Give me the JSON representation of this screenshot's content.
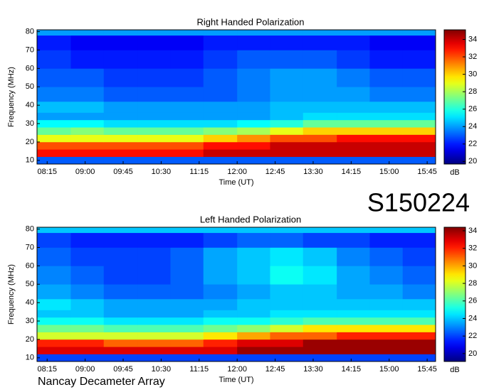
{
  "chart_data": [
    {
      "type": "heatmap",
      "title": "Right Handed Polarization",
      "xlabel": "Time (UT)",
      "ylabel": "Frequency (MHz)",
      "colorbar_label": "dB",
      "colormap": "jet",
      "xlim": [
        483,
        955
      ],
      "ylim": [
        8,
        81
      ],
      "clim": [
        19.7,
        35.1
      ],
      "xticks": [
        {
          "value": 495,
          "label": "08:15"
        },
        {
          "value": 540,
          "label": "09:00"
        },
        {
          "value": 585,
          "label": "09:45"
        },
        {
          "value": 630,
          "label": "10:30"
        },
        {
          "value": 675,
          "label": "11:15"
        },
        {
          "value": 720,
          "label": "12:00"
        },
        {
          "value": 765,
          "label": "12:45"
        },
        {
          "value": 810,
          "label": "13:30"
        },
        {
          "value": 855,
          "label": "14:15"
        },
        {
          "value": 900,
          "label": "15:00"
        },
        {
          "value": 945,
          "label": "15:45"
        }
      ],
      "yticks": [
        10,
        20,
        30,
        40,
        50,
        60,
        70,
        80
      ],
      "cticks": [
        20,
        22,
        24,
        26,
        28,
        30,
        32,
        34
      ],
      "x_edges": [
        483,
        523,
        562,
        602,
        641,
        680,
        720,
        759,
        798,
        838,
        877,
        916,
        955
      ],
      "y_edges": [
        8,
        12,
        16,
        20,
        24,
        28,
        32,
        36,
        42,
        50,
        60,
        70,
        78,
        81
      ],
      "z": [
        [
          23,
          23,
          23,
          23,
          23,
          23,
          23,
          23,
          23,
          23,
          23,
          23
        ],
        [
          33,
          33,
          33,
          33,
          33,
          34,
          34,
          34,
          34,
          34,
          34,
          34
        ],
        [
          32,
          32,
          32,
          32,
          32,
          33,
          33,
          34,
          34,
          34,
          34,
          34
        ],
        [
          29,
          29,
          29,
          29,
          29,
          30,
          31,
          32,
          32,
          33,
          33,
          33
        ],
        [
          27,
          27.5,
          27,
          27,
          27,
          27.5,
          28,
          29,
          30,
          30,
          30,
          30
        ],
        [
          25.5,
          25.5,
          25,
          25,
          25,
          25,
          25.5,
          26,
          27,
          27,
          27,
          27
        ],
        [
          24,
          24,
          24,
          24,
          24,
          24,
          24,
          24.5,
          25,
          25,
          25,
          25
        ],
        [
          24.5,
          24.5,
          24,
          24,
          24,
          24,
          24,
          24.5,
          24.5,
          24.5,
          24.5,
          24.5
        ],
        [
          23.5,
          23.5,
          23,
          23,
          23,
          23,
          23.5,
          24,
          24,
          24,
          23.5,
          23.5
        ],
        [
          23,
          23,
          22.5,
          22.5,
          22.5,
          23,
          23.5,
          24,
          24,
          23.5,
          23,
          23
        ],
        [
          22.5,
          22,
          22,
          22,
          22,
          22.5,
          23,
          23,
          23,
          22.5,
          22,
          22
        ],
        [
          22,
          21.5,
          21.5,
          21.5,
          21.5,
          22,
          22,
          22,
          22,
          22,
          21.5,
          21.5
        ],
        [
          24,
          24,
          24,
          24,
          24,
          24,
          24,
          24,
          24,
          24,
          24,
          24
        ]
      ]
    },
    {
      "type": "heatmap",
      "title": "Left Handed Polarization",
      "xlabel": "Time (UT)",
      "ylabel": "Frequency (MHz)",
      "colorbar_label": "dB",
      "colormap": "jet",
      "xlim": [
        483,
        955
      ],
      "ylim": [
        8,
        81
      ],
      "clim": [
        19.1,
        34.4
      ],
      "xticks": [
        {
          "value": 495,
          "label": "08:15"
        },
        {
          "value": 540,
          "label": "09:00"
        },
        {
          "value": 585,
          "label": "09:45"
        },
        {
          "value": 630,
          "label": "10:30"
        },
        {
          "value": 675,
          "label": "11:15"
        },
        {
          "value": 720,
          "label": "12:00"
        },
        {
          "value": 765,
          "label": "12:45"
        },
        {
          "value": 810,
          "label": "13:30"
        },
        {
          "value": 855,
          "label": "14:15"
        },
        {
          "value": 900,
          "label": "15:00"
        },
        {
          "value": 945,
          "label": "15:45"
        }
      ],
      "yticks": [
        10,
        20,
        30,
        40,
        50,
        60,
        70,
        80
      ],
      "cticks": [
        20,
        22,
        24,
        26,
        28,
        30,
        32,
        34
      ],
      "x_edges": [
        483,
        523,
        562,
        602,
        641,
        680,
        720,
        759,
        798,
        838,
        877,
        916,
        955
      ],
      "y_edges": [
        8,
        12,
        16,
        20,
        24,
        28,
        32,
        36,
        42,
        50,
        60,
        70,
        78,
        81
      ],
      "z": [
        [
          22,
          22,
          22,
          22,
          22,
          22,
          22,
          22,
          22,
          22,
          22,
          22
        ],
        [
          33,
          33,
          33,
          33,
          33,
          33,
          34,
          34,
          34,
          34,
          34,
          34
        ],
        [
          32,
          32,
          31,
          31,
          31,
          32,
          33,
          33,
          34,
          34,
          34,
          34
        ],
        [
          28,
          28,
          28,
          28,
          28,
          29,
          30,
          31,
          31,
          32,
          32,
          32
        ],
        [
          26.5,
          26.5,
          26,
          26,
          26,
          26.5,
          27,
          28,
          29,
          29,
          29,
          29
        ],
        [
          25,
          25,
          24.5,
          24.5,
          24.5,
          25,
          25,
          25.5,
          26,
          26,
          26,
          26
        ],
        [
          24,
          24,
          23.5,
          23.5,
          23.5,
          24,
          24,
          24.5,
          24.5,
          24.5,
          24.5,
          24.5
        ],
        [
          24.5,
          24,
          23.5,
          23.5,
          23.5,
          23.5,
          24,
          24,
          24,
          24,
          24,
          24
        ],
        [
          23.5,
          23,
          22.5,
          22.5,
          22.5,
          23,
          23.5,
          24,
          24,
          23.5,
          23.5,
          23
        ],
        [
          23,
          22.5,
          22,
          22,
          22.5,
          23.5,
          24,
          25,
          24.5,
          23.5,
          23,
          22.5
        ],
        [
          22.5,
          22,
          22,
          22,
          22.5,
          23.5,
          24,
          24.5,
          24,
          23,
          22.5,
          22
        ],
        [
          22,
          21.5,
          21.5,
          21.5,
          21.5,
          22,
          22.5,
          22.5,
          22,
          22,
          21.5,
          21.5
        ],
        [
          24,
          24,
          24,
          24,
          24,
          24,
          24,
          24,
          24,
          24,
          24,
          24
        ]
      ]
    }
  ],
  "annotations": {
    "id": "S150224",
    "source": "Nancay Decameter Array"
  }
}
